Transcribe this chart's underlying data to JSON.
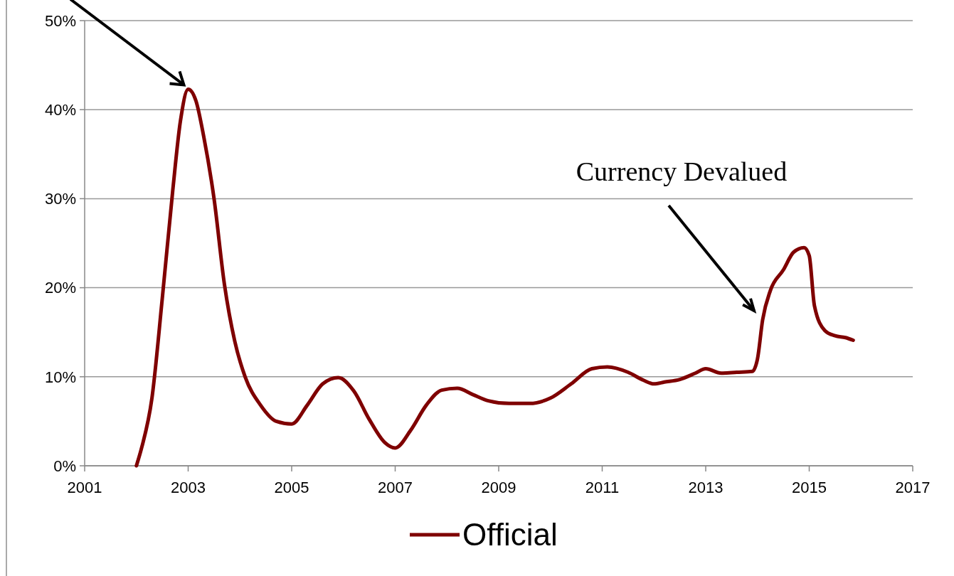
{
  "chart_data": {
    "type": "line",
    "x": [
      2002.0,
      2002.1,
      2002.3,
      2002.5,
      2002.7,
      2002.85,
      2003.0,
      2003.15,
      2003.3,
      2003.5,
      2003.7,
      2003.9,
      2004.1,
      2004.4,
      2004.7,
      2005.0,
      2005.3,
      2005.6,
      2005.9,
      2006.2,
      2006.5,
      2006.8,
      2007.0,
      2007.3,
      2007.6,
      2007.9,
      2008.2,
      2008.5,
      2008.8,
      2009.2,
      2009.6,
      2010.0,
      2010.4,
      2010.8,
      2011.1,
      2011.5,
      2011.8,
      2012.0,
      2012.2,
      2012.5,
      2012.8,
      2013.0,
      2013.3,
      2013.6,
      2013.9,
      2014.0,
      2014.1,
      2014.25,
      2014.5,
      2014.7,
      2014.9,
      2015.0,
      2015.1,
      2015.3,
      2015.5,
      2015.7,
      2015.85
    ],
    "series": [
      {
        "name": "Official",
        "color": "#7f0000",
        "values": [
          0,
          2,
          7.6,
          18.8,
          30.8,
          38.7,
          42.3,
          41,
          37,
          30,
          20.4,
          14,
          10,
          6.8,
          5,
          4.7,
          6.8,
          9.2,
          9.9,
          8.4,
          5.2,
          2.6,
          2,
          4,
          6.8,
          8.5,
          8.7,
          8,
          7.3,
          7,
          7,
          7.6,
          9.2,
          10.9,
          11.1,
          10.5,
          9.6,
          9.2,
          9.4,
          9.7,
          10.4,
          10.9,
          10.4,
          10.5,
          10.6,
          12,
          16.4,
          19.7,
          22,
          24,
          24.5,
          23.6,
          18,
          15.2,
          14.6,
          14.4,
          14.1
        ]
      }
    ],
    "xlim": [
      2001,
      2017
    ],
    "xticks": [
      2001,
      2003,
      2005,
      2007,
      2009,
      2011,
      2013,
      2015,
      2017
    ],
    "ylim": [
      0,
      50
    ],
    "yticks": [
      {
        "value": 0,
        "label": "0%"
      },
      {
        "value": 10,
        "label": "10%"
      },
      {
        "value": 20,
        "label": "20%"
      },
      {
        "value": 30,
        "label": "30%"
      },
      {
        "value": 40,
        "label": "40%"
      },
      {
        "value": 50,
        "label": "50%"
      }
    ],
    "grid": "y",
    "legend": "bottom",
    "marker": "none",
    "line_style": "solid",
    "annotations": [
      "Currency Devalued"
    ]
  }
}
